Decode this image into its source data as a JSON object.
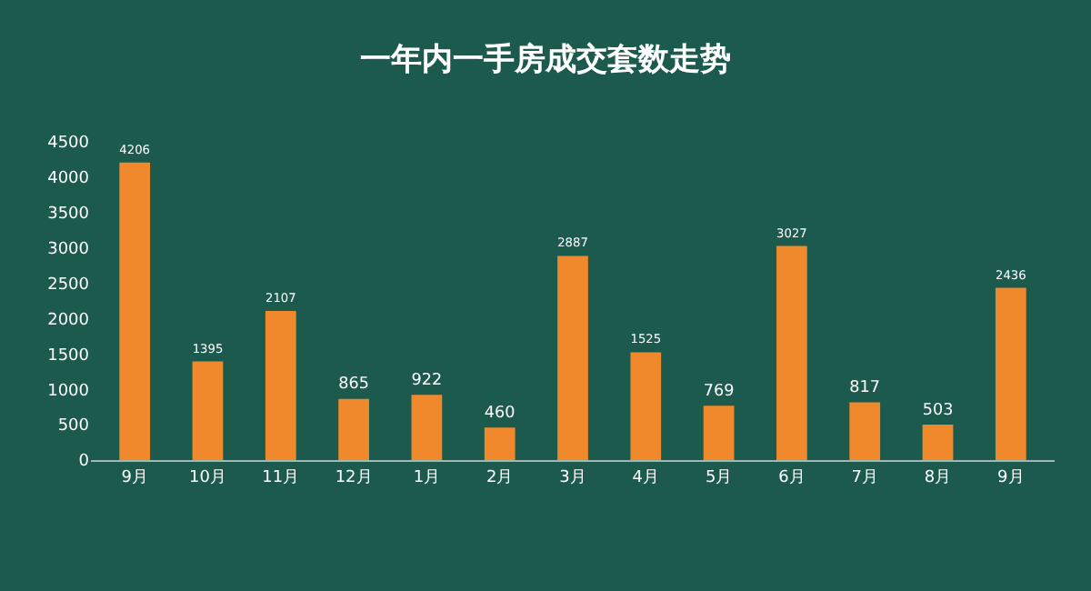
{
  "chart_data": {
    "type": "bar",
    "title": "一年内一手房成交套数走势",
    "categories": [
      "9月",
      "10月",
      "11月",
      "12月",
      "1月",
      "2月",
      "3月",
      "4月",
      "5月",
      "6月",
      "7月",
      "8月",
      "9月"
    ],
    "values": [
      4206,
      1395,
      2107,
      865,
      922,
      460,
      2887,
      1525,
      769,
      3027,
      817,
      503,
      2436
    ],
    "color": "#f0892c",
    "data_labels": true,
    "ylim": [
      0,
      4500
    ],
    "yticks": [
      0,
      500,
      1000,
      1500,
      2000,
      2500,
      3000,
      3500,
      4000,
      4500
    ],
    "grid": false,
    "legend": false
  }
}
